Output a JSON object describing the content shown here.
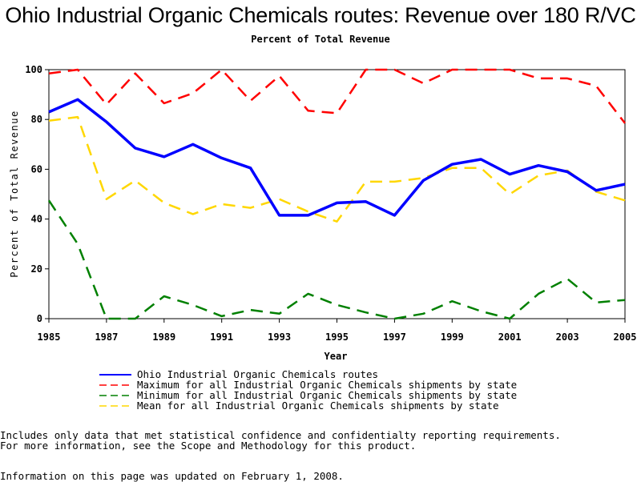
{
  "chart_data": {
    "type": "line",
    "title": "Ohio Industrial Organic Chemicals routes: Revenue over 180 R/VC",
    "subtitle": "Percent of Total Revenue",
    "xlabel": "Year",
    "ylabel": "Percent of Total Revenue",
    "xlim": [
      1985,
      2005
    ],
    "ylim": [
      0,
      100
    ],
    "x_ticks": [
      "1985",
      "1987",
      "1989",
      "1991",
      "1993",
      "1995",
      "1997",
      "1999",
      "2001",
      "2003",
      "2005"
    ],
    "y_ticks": [
      "0",
      "20",
      "40",
      "60",
      "80",
      "100"
    ],
    "grid": false,
    "legend_position": "bottom",
    "x": [
      1985,
      1986,
      1987,
      1988,
      1989,
      1990,
      1991,
      1992,
      1993,
      1994,
      1995,
      1996,
      1997,
      1998,
      1999,
      2000,
      2001,
      2002,
      2003,
      2004,
      2005
    ],
    "series": [
      {
        "name": "Ohio Industrial Organic Chemicals routes",
        "color": "#0000ff",
        "style": "solid",
        "values": [
          83,
          88,
          79,
          68.5,
          65,
          70,
          64.5,
          60.5,
          41.5,
          41.5,
          46.5,
          47,
          41.5,
          55.5,
          62,
          64,
          58,
          61.5,
          59,
          51.5,
          54
        ]
      },
      {
        "name": "Maximum for all Industrial Organic Chemicals shipments by state",
        "color": "#ff0000",
        "style": "dashed",
        "values": [
          98.5,
          100,
          86,
          98.5,
          86.5,
          90.5,
          100,
          87.5,
          97.5,
          83.5,
          82.5,
          100,
          100,
          94.5,
          100,
          100,
          100,
          96.5,
          96.5,
          93.5,
          78.5
        ]
      },
      {
        "name": "Minimum for all Industrial Organic Chemicals shipments by state",
        "color": "#008000",
        "style": "dashed",
        "values": [
          47.5,
          30,
          0,
          0,
          9,
          5.5,
          1,
          3.5,
          2,
          10,
          5.5,
          2.5,
          0,
          2,
          7,
          3,
          0,
          10,
          16,
          6.5,
          7.5
        ]
      },
      {
        "name": "Mean for all Industrial Organic Chemicals shipments by state",
        "color": "#ffd700",
        "style": "dashed",
        "values": [
          79.5,
          81,
          48,
          55.5,
          46.5,
          42,
          46,
          44.5,
          48,
          43,
          39,
          55,
          55,
          56.5,
          60.5,
          60.5,
          50,
          57.5,
          59.5,
          51,
          47.5
        ]
      }
    ]
  },
  "footnotes": {
    "line1": "Includes only data that met statistical confidence and confidentialty reporting requirements.",
    "line2": "For more information, see the Scope and Methodology for this product.",
    "line3": "Information on this page was updated on February 1, 2008."
  }
}
